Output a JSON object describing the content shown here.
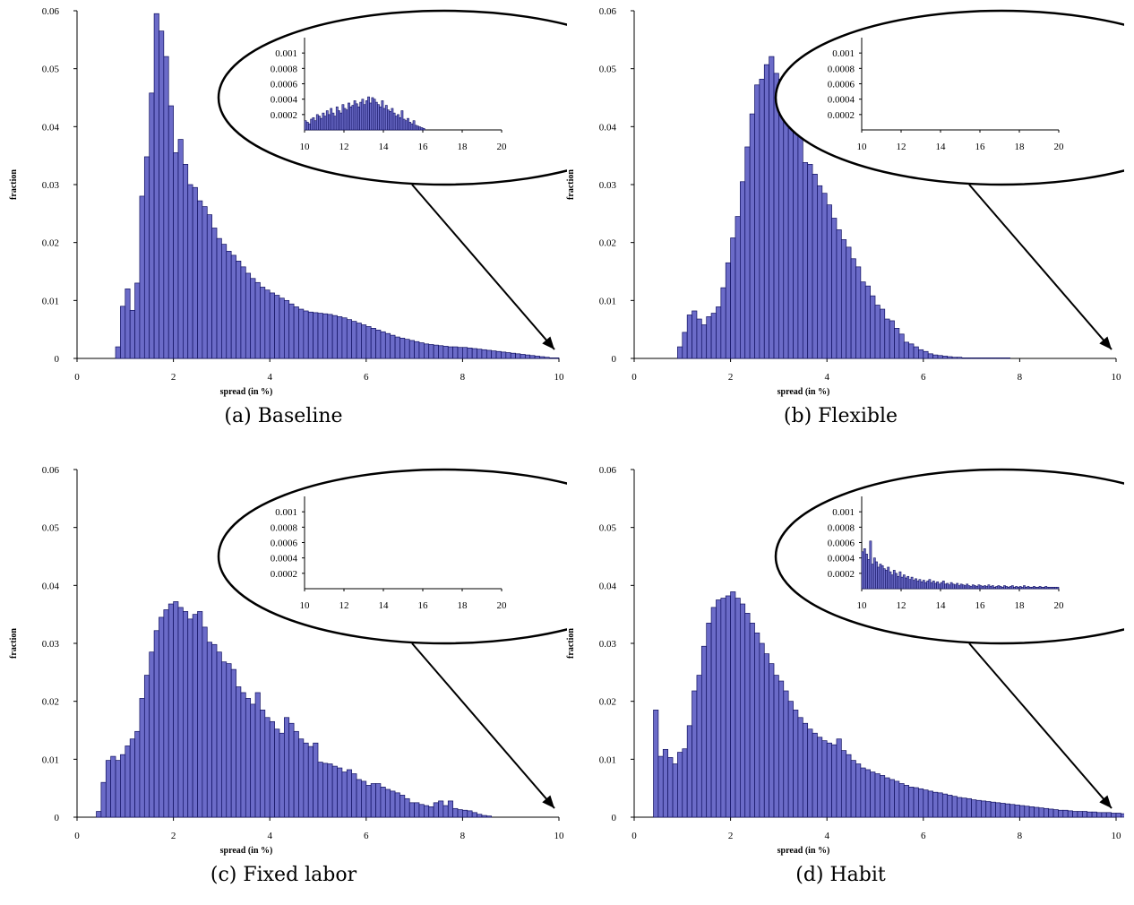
{
  "chart_data": [
    {
      "type": "bar",
      "caption": "(a) Baseline",
      "xlabel": "spread (in %)",
      "ylabel": "fraction",
      "xlim": [
        0,
        10
      ],
      "ylim": [
        0,
        0.06
      ],
      "xticks": [
        "0",
        "2",
        "4",
        "6",
        "8",
        "10"
      ],
      "yticks": [
        "0",
        "0.01",
        "0.02",
        "0.03",
        "0.04",
        "0.05",
        "0.06"
      ],
      "bin_width": 0.1,
      "x_start": 0.4,
      "values": [
        0.0,
        0.0,
        0.0,
        0.0,
        0.002,
        0.009,
        0.012,
        0.0083,
        0.013,
        0.028,
        0.0348,
        0.0458,
        0.0595,
        0.0565,
        0.0521,
        0.0436,
        0.0355,
        0.0378,
        0.0335,
        0.03,
        0.0295,
        0.0272,
        0.0262,
        0.0248,
        0.0225,
        0.0207,
        0.0197,
        0.0185,
        0.0178,
        0.0168,
        0.0158,
        0.0147,
        0.0138,
        0.0131,
        0.0123,
        0.0118,
        0.0113,
        0.0109,
        0.0104,
        0.01,
        0.0094,
        0.0089,
        0.0085,
        0.0082,
        0.008,
        0.0079,
        0.0078,
        0.0077,
        0.0076,
        0.0074,
        0.0072,
        0.007,
        0.0067,
        0.0064,
        0.0061,
        0.0058,
        0.0055,
        0.0052,
        0.0049,
        0.0046,
        0.0043,
        0.004,
        0.0037,
        0.0035,
        0.0033,
        0.0031,
        0.0029,
        0.0027,
        0.0025,
        0.0024,
        0.0023,
        0.0022,
        0.0021,
        0.002,
        0.002,
        0.0019,
        0.0019,
        0.0018,
        0.0017,
        0.0016,
        0.0015,
        0.0014,
        0.0013,
        0.0012,
        0.0011,
        0.001,
        0.0009,
        0.0008,
        0.0007,
        0.0006,
        0.0005,
        0.0004,
        0.0003,
        0.0002,
        0.0001,
        0.0001
      ],
      "inset": {
        "xlim": [
          10,
          20
        ],
        "ylim": [
          0,
          0.0012
        ],
        "xticks": [
          "10",
          "12",
          "14",
          "16",
          "18",
          "20"
        ],
        "yticks": [
          "0.0002",
          "0.0004",
          "0.0006",
          "0.0008",
          "0.001"
        ],
        "bin_width": 0.1,
        "x_start": 10,
        "values": [
          0.00012,
          0.0001,
          8e-05,
          0.00014,
          0.00016,
          0.00012,
          0.0002,
          0.00018,
          0.00015,
          0.00022,
          0.00018,
          0.00025,
          0.0002,
          0.00028,
          0.00022,
          0.00018,
          0.0003,
          0.00025,
          0.00022,
          0.00033,
          0.00028,
          0.00026,
          0.00035,
          0.0003,
          0.00032,
          0.00038,
          0.00034,
          0.0003,
          0.00036,
          0.0004,
          0.00033,
          0.00038,
          0.00043,
          0.00035,
          0.00042,
          0.0004,
          0.00036,
          0.00033,
          0.0003,
          0.00038,
          0.00028,
          0.00032,
          0.00026,
          0.00024,
          0.00028,
          0.00022,
          0.00018,
          0.0002,
          0.00016,
          0.00025,
          0.00014,
          0.00012,
          0.00015,
          0.0001,
          8e-05,
          0.00012,
          6e-05,
          5e-05,
          4e-05,
          3e-05,
          2e-05
        ]
      }
    },
    {
      "type": "bar",
      "caption": "(b) Flexible",
      "xlabel": "spread (in %)",
      "ylabel": "fraction",
      "xlim": [
        0,
        10
      ],
      "ylim": [
        0,
        0.06
      ],
      "xticks": [
        "0",
        "2",
        "4",
        "6",
        "8",
        "10"
      ],
      "yticks": [
        "0",
        "0.01",
        "0.02",
        "0.03",
        "0.04",
        "0.05",
        "0.06"
      ],
      "bin_width": 0.1,
      "x_start": 0.6,
      "values": [
        0.0,
        0.0,
        0.0,
        0.002,
        0.0045,
        0.0075,
        0.0082,
        0.0068,
        0.0058,
        0.0072,
        0.0078,
        0.0089,
        0.0122,
        0.0165,
        0.0208,
        0.0245,
        0.0305,
        0.0365,
        0.0422,
        0.0472,
        0.0482,
        0.0507,
        0.0521,
        0.0492,
        0.0482,
        0.0465,
        0.0452,
        0.0422,
        0.0385,
        0.0338,
        0.0335,
        0.0318,
        0.0298,
        0.0285,
        0.0265,
        0.0242,
        0.0222,
        0.0205,
        0.0192,
        0.0172,
        0.0158,
        0.0132,
        0.0125,
        0.0108,
        0.0092,
        0.0085,
        0.0068,
        0.0065,
        0.0052,
        0.0042,
        0.0028,
        0.0025,
        0.002,
        0.0015,
        0.0012,
        0.0008,
        0.0006,
        0.0005,
        0.0004,
        0.0003,
        0.0002,
        0.0002,
        0.0001,
        0.0001,
        0.0001,
        0.0001,
        0.0001,
        0.0001,
        0.0001,
        0.0001,
        0.0001,
        0.0001
      ]
    },
    {
      "type": "bar",
      "caption": "(c) Fixed labor",
      "xlabel": "spread (in %)",
      "ylabel": "fraction",
      "xlim": [
        0,
        10
      ],
      "ylim": [
        0,
        0.06
      ],
      "xticks": [
        "0",
        "2",
        "4",
        "6",
        "8",
        "10"
      ],
      "yticks": [
        "0",
        "0.01",
        "0.02",
        "0.03",
        "0.04",
        "0.05",
        "0.06"
      ],
      "bin_width": 0.1,
      "x_start": 0.4,
      "values": [
        0.001,
        0.006,
        0.0098,
        0.0105,
        0.0098,
        0.0108,
        0.0123,
        0.0135,
        0.0148,
        0.0205,
        0.0245,
        0.0285,
        0.0322,
        0.0345,
        0.0358,
        0.0368,
        0.0372,
        0.0362,
        0.0355,
        0.0342,
        0.035,
        0.0355,
        0.0328,
        0.0302,
        0.0298,
        0.0285,
        0.0268,
        0.0265,
        0.0255,
        0.0225,
        0.0215,
        0.0205,
        0.0195,
        0.0215,
        0.0185,
        0.0172,
        0.0165,
        0.0152,
        0.0145,
        0.0172,
        0.0162,
        0.0148,
        0.0135,
        0.0128,
        0.0122,
        0.0128,
        0.0095,
        0.0093,
        0.0092,
        0.0088,
        0.0085,
        0.0078,
        0.0082,
        0.0075,
        0.0065,
        0.0062,
        0.0055,
        0.0058,
        0.0058,
        0.0052,
        0.0048,
        0.0045,
        0.0042,
        0.0038,
        0.0032,
        0.0025,
        0.0025,
        0.0022,
        0.002,
        0.0018,
        0.0025,
        0.0028,
        0.002,
        0.0028,
        0.0015,
        0.0013,
        0.0012,
        0.0011,
        0.0008,
        0.0005,
        0.0003,
        0.0002
      ]
    },
    {
      "type": "bar",
      "caption": "(d) Habit",
      "xlabel": "spread (in %)",
      "ylabel": "fraction",
      "xlim": [
        0,
        10
      ],
      "ylim": [
        0,
        0.06
      ],
      "xticks": [
        "0",
        "2",
        "4",
        "6",
        "8",
        "10"
      ],
      "yticks": [
        "0",
        "0.01",
        "0.02",
        "0.03",
        "0.04",
        "0.05",
        "0.06"
      ],
      "bin_width": 0.1,
      "x_start": 0.4,
      "values": [
        0.0185,
        0.0105,
        0.0117,
        0.0103,
        0.0092,
        0.0112,
        0.0118,
        0.0158,
        0.0218,
        0.0245,
        0.0295,
        0.0335,
        0.0362,
        0.0375,
        0.0378,
        0.0382,
        0.0389,
        0.0378,
        0.0368,
        0.0352,
        0.0335,
        0.0318,
        0.03,
        0.0282,
        0.0265,
        0.0245,
        0.0235,
        0.0218,
        0.02,
        0.0185,
        0.0172,
        0.0162,
        0.0152,
        0.0145,
        0.0138,
        0.0132,
        0.0128,
        0.0125,
        0.0135,
        0.0115,
        0.0108,
        0.0098,
        0.0092,
        0.0085,
        0.0082,
        0.0078,
        0.0075,
        0.0072,
        0.0068,
        0.0065,
        0.0062,
        0.0058,
        0.0055,
        0.0052,
        0.0051,
        0.0049,
        0.0047,
        0.0045,
        0.0043,
        0.0042,
        0.004,
        0.0038,
        0.0036,
        0.0034,
        0.0033,
        0.0032,
        0.003,
        0.0029,
        0.0028,
        0.0027,
        0.0026,
        0.0025,
        0.0024,
        0.0023,
        0.0022,
        0.0021,
        0.002,
        0.0019,
        0.0018,
        0.0017,
        0.0016,
        0.0015,
        0.0014,
        0.0013,
        0.0012,
        0.0012,
        0.0011,
        0.001,
        0.001,
        0.001,
        0.0009,
        0.0009,
        0.0008,
        0.0008,
        0.0008,
        0.0007,
        0.0007,
        0.0006,
        0.0006,
        0.0006
      ],
      "inset": {
        "xlim": [
          10,
          20
        ],
        "ylim": [
          0,
          0.0012
        ],
        "xticks": [
          "10",
          "12",
          "14",
          "16",
          "18",
          "20"
        ],
        "yticks": [
          "0.0002",
          "0.0004",
          "0.0006",
          "0.0008",
          "0.001"
        ],
        "bin_width": 0.1,
        "x_start": 10,
        "values": [
          0.00048,
          0.00052,
          0.00045,
          0.00038,
          0.00062,
          0.00032,
          0.0004,
          0.00035,
          0.00028,
          0.00032,
          0.0003,
          0.00026,
          0.00024,
          0.00028,
          0.00022,
          0.00018,
          0.00024,
          0.0002,
          0.00016,
          0.00022,
          0.00015,
          0.00018,
          0.00014,
          0.00016,
          0.00012,
          0.00015,
          0.00011,
          0.00013,
          0.0001,
          0.00012,
          9e-05,
          0.00011,
          8e-05,
          0.0001,
          0.00012,
          8e-05,
          0.0001,
          7e-05,
          9e-05,
          6e-05,
          8e-05,
          0.0001,
          6e-05,
          7e-05,
          5e-05,
          8e-05,
          6e-05,
          5e-05,
          7e-05,
          4e-05,
          6e-05,
          5e-05,
          4e-05,
          6e-05,
          4e-05,
          3e-05,
          5e-05,
          4e-05,
          3e-05,
          5e-05,
          4e-05,
          3e-05,
          4e-05,
          3e-05,
          5e-05,
          3e-05,
          4e-05,
          2e-05,
          3e-05,
          4e-05,
          3e-05,
          2e-05,
          4e-05,
          3e-05,
          2e-05,
          3e-05,
          4e-05,
          2e-05,
          3e-05,
          2e-05,
          3e-05,
          2e-05,
          4e-05,
          2e-05,
          3e-05,
          2e-05,
          2e-05,
          3e-05,
          2e-05,
          2e-05,
          3e-05,
          2e-05,
          2e-05,
          3e-05,
          2e-05,
          2e-05,
          2e-05,
          2e-05,
          2e-05,
          2e-05
        ]
      }
    }
  ]
}
